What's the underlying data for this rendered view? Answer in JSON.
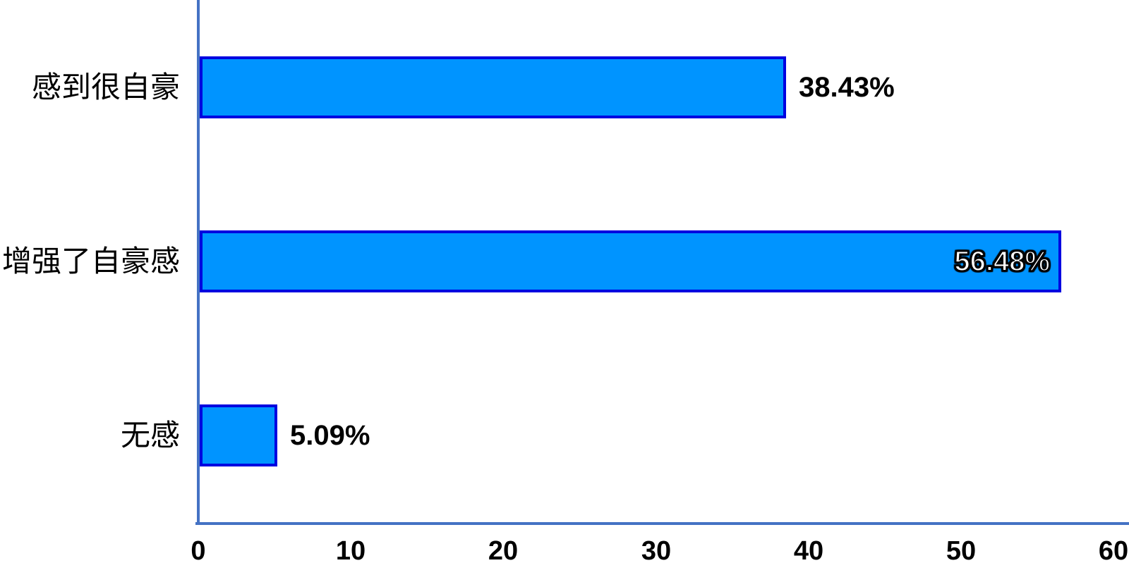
{
  "chart_data": {
    "type": "bar",
    "orientation": "horizontal",
    "title": "",
    "categories": [
      "感到很自豪",
      "增强了自豪感",
      "无感"
    ],
    "values": [
      38.43,
      56.48,
      5.09
    ],
    "value_labels": [
      "38.43%",
      "56.48%",
      "5.09%"
    ],
    "label_inside": [
      false,
      true,
      false
    ],
    "x_ticks": [
      "0",
      "10",
      "20",
      "30",
      "40",
      "50",
      "60"
    ],
    "x_tick_values": [
      0,
      10,
      20,
      30,
      40,
      50,
      60
    ],
    "xlim": [
      0,
      60
    ],
    "grid": false,
    "legend": null,
    "colors": {
      "bar_fill": "#0094FF",
      "bar_border": "#0000E0",
      "axis_line": "#4472C4",
      "label_text": "#000000",
      "inside_label_text": "#FFFFFF"
    }
  }
}
